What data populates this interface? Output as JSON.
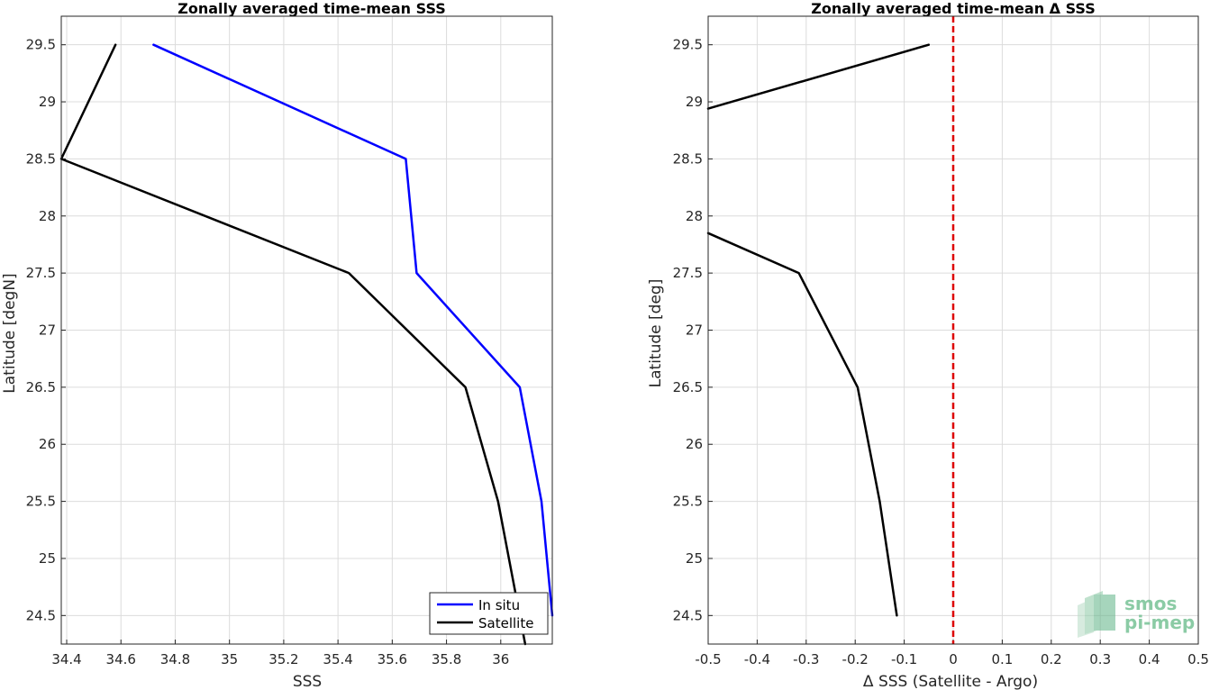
{
  "chart_data": [
    {
      "type": "line",
      "title": "Zonally averaged time-mean SSS",
      "xlabel": "SSS",
      "ylabel": "Latitude [degN]",
      "xlim": [
        34.38,
        36.19
      ],
      "ylim": [
        24.25,
        29.75
      ],
      "xticks": [
        34.4,
        34.6,
        34.8,
        35.0,
        35.2,
        35.4,
        35.6,
        35.8,
        36.0
      ],
      "xtick_labels": [
        "34.4",
        "34.6",
        "34.8",
        "35",
        "35.2",
        "35.4",
        "35.6",
        "35.8",
        "36"
      ],
      "yticks": [
        24.5,
        25.0,
        25.5,
        26.0,
        26.5,
        27.0,
        27.5,
        28.0,
        28.5,
        29.0,
        29.5
      ],
      "ytick_labels": [
        "24.5",
        "25",
        "25.5",
        "26",
        "26.5",
        "27",
        "27.5",
        "28",
        "28.5",
        "29",
        "29.5"
      ],
      "grid": true,
      "legend": "bottom-right",
      "series": [
        {
          "name": "In situ",
          "color": "#0000ff",
          "x": [
            34.72,
            35.65,
            35.69,
            36.07,
            36.15,
            36.19
          ],
          "y": [
            29.5,
            28.5,
            27.5,
            26.5,
            25.5,
            24.5
          ]
        },
        {
          "name": "Satellite",
          "color": "#000000",
          "x": [
            34.58,
            34.38,
            35.44,
            35.87,
            35.99,
            36.09
          ],
          "y": [
            29.5,
            28.5,
            27.5,
            26.5,
            25.5,
            24.25
          ]
        }
      ]
    },
    {
      "type": "line",
      "title": "Zonally averaged time-mean Δ SSS",
      "xlabel": "Δ SSS (Satellite - Argo)",
      "ylabel": "Latitude [deg]",
      "xlim": [
        -0.5,
        0.5
      ],
      "ylim": [
        24.25,
        29.75
      ],
      "xticks": [
        -0.5,
        -0.4,
        -0.3,
        -0.2,
        -0.1,
        0.0,
        0.1,
        0.2,
        0.3,
        0.4,
        0.5
      ],
      "xtick_labels": [
        "-0.5",
        "-0.4",
        "-0.3",
        "-0.2",
        "-0.1",
        "0",
        "0.1",
        "0.2",
        "0.3",
        "0.4",
        "0.5"
      ],
      "yticks": [
        24.5,
        25.0,
        25.5,
        26.0,
        26.5,
        27.0,
        27.5,
        28.0,
        28.5,
        29.0,
        29.5
      ],
      "ytick_labels": [
        "24.5",
        "25",
        "25.5",
        "26",
        "26.5",
        "27",
        "27.5",
        "28",
        "28.5",
        "29",
        "29.5"
      ],
      "grid": true,
      "reference_line": {
        "x": 0,
        "color": "#dd0000",
        "style": "dashed"
      },
      "series": [
        {
          "segments": [
            {
              "x": [
                -0.5,
                -0.05
              ],
              "y": [
                28.94,
                29.5
              ]
            },
            {
              "x": [
                -0.5,
                -0.315,
                -0.195,
                -0.15,
                -0.115
              ],
              "y": [
                27.85,
                27.5,
                26.5,
                25.5,
                24.5
              ]
            }
          ],
          "color": "#000000"
        }
      ]
    }
  ],
  "watermark": {
    "line1": "smos",
    "line2": "pi-mep",
    "color": "#6fbf8f"
  }
}
